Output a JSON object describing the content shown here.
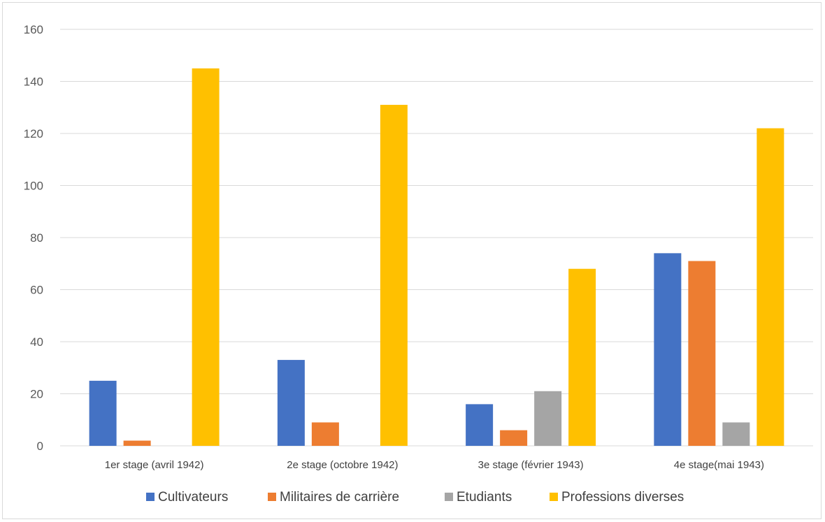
{
  "chart_data": {
    "type": "bar",
    "title": "",
    "xlabel": "",
    "ylabel": "",
    "ylim": [
      0,
      160
    ],
    "yticks": [
      0,
      20,
      40,
      60,
      80,
      100,
      120,
      140,
      160
    ],
    "grid": true,
    "legend_position": "bottom",
    "categories": [
      "1er stage (avril 1942)",
      "2e stage (octobre 1942)",
      "3e stage (février 1943)",
      "4e stage(mai 1943)"
    ],
    "series": [
      {
        "name": "Cultivateurs",
        "color": "#4472C4",
        "values": [
          25,
          33,
          16,
          74
        ]
      },
      {
        "name": "Militaires de carrière",
        "color": "#ED7D31",
        "values": [
          2,
          9,
          6,
          71
        ]
      },
      {
        "name": "Etudiants",
        "color": "#A5A5A5",
        "values": [
          0,
          0,
          21,
          9
        ]
      },
      {
        "name": "Professions diverses",
        "color": "#FFC000",
        "values": [
          145,
          131,
          68,
          122
        ]
      }
    ]
  }
}
